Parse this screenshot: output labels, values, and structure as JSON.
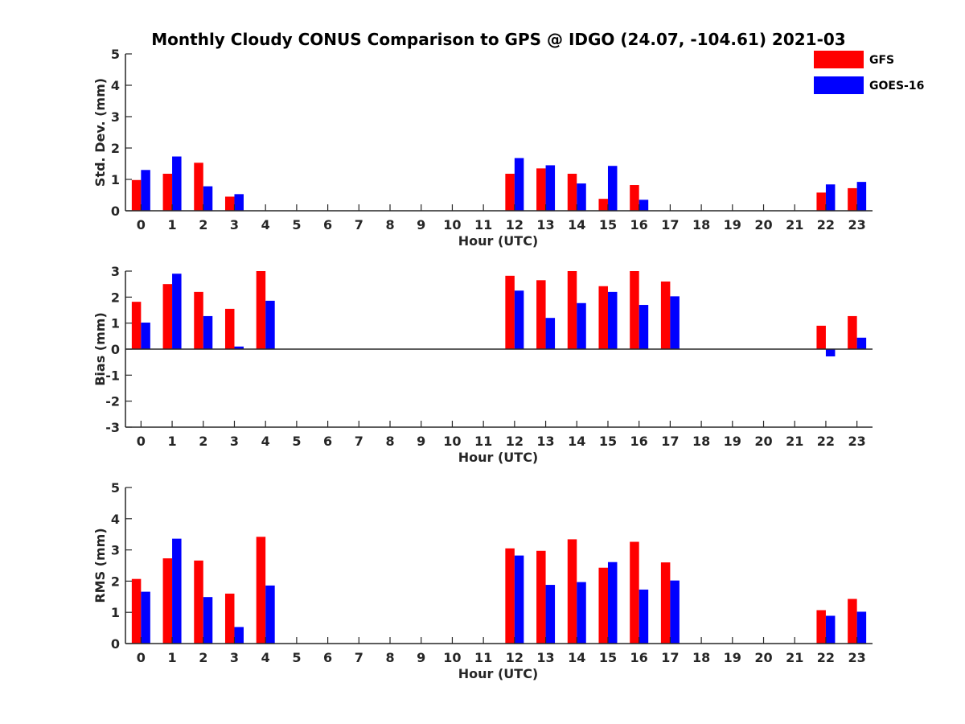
{
  "figure": {
    "title": "Monthly Cloudy CONUS Comparison to GPS @ IDGO (24.07, -104.61) 2021-03"
  },
  "legend": {
    "placement": "top-right",
    "entries": [
      {
        "name": "GFS",
        "color": "#ff0000"
      },
      {
        "name": "GOES-16",
        "color": "#0000ff"
      }
    ]
  },
  "chart_data": [
    {
      "type": "bar",
      "title": "Monthly Cloudy CONUS Comparison to GPS @ IDGO (24.07, -104.61) 2021-03",
      "xlabel": "Hour (UTC)",
      "ylabel": "Std. Dev. (mm)",
      "ylim": [
        0,
        5
      ],
      "yticks": [
        0,
        1,
        2,
        3,
        4,
        5
      ],
      "categories": [
        "0",
        "1",
        "2",
        "3",
        "4",
        "5",
        "6",
        "7",
        "8",
        "9",
        "10",
        "11",
        "12",
        "13",
        "14",
        "15",
        "16",
        "17",
        "18",
        "19",
        "20",
        "21",
        "22",
        "23"
      ],
      "series": [
        {
          "name": "GFS",
          "color": "#ff0000",
          "values": [
            0.98,
            1.18,
            1.53,
            0.45,
            null,
            null,
            null,
            null,
            null,
            null,
            null,
            null,
            1.18,
            1.35,
            1.18,
            0.38,
            0.82,
            null,
            null,
            null,
            null,
            null,
            0.58,
            0.72
          ]
        },
        {
          "name": "GOES-16",
          "color": "#0000ff",
          "values": [
            1.3,
            1.73,
            0.78,
            0.53,
            null,
            null,
            null,
            null,
            null,
            null,
            null,
            null,
            1.68,
            1.45,
            0.87,
            1.43,
            0.35,
            null,
            null,
            null,
            null,
            null,
            0.84,
            0.92
          ]
        }
      ]
    },
    {
      "type": "bar",
      "xlabel": "Hour (UTC)",
      "ylabel": "Bias (mm)",
      "ylim": [
        -3,
        3
      ],
      "yticks": [
        -3,
        -2,
        -1,
        0,
        1,
        2,
        3
      ],
      "categories": [
        "0",
        "1",
        "2",
        "3",
        "4",
        "5",
        "6",
        "7",
        "8",
        "9",
        "10",
        "11",
        "12",
        "13",
        "14",
        "15",
        "16",
        "17",
        "18",
        "19",
        "20",
        "21",
        "22",
        "23"
      ],
      "series": [
        {
          "name": "GFS",
          "color": "#ff0000",
          "values": [
            1.82,
            2.5,
            2.2,
            1.55,
            3.0,
            null,
            null,
            null,
            null,
            null,
            null,
            null,
            2.82,
            2.65,
            3.0,
            2.42,
            3.0,
            2.6,
            null,
            null,
            null,
            null,
            0.9,
            1.27
          ]
        },
        {
          "name": "GOES-16",
          "color": "#0000ff",
          "values": [
            1.02,
            2.9,
            1.27,
            0.1,
            1.86,
            null,
            null,
            null,
            null,
            null,
            null,
            null,
            2.25,
            1.2,
            1.77,
            2.2,
            1.7,
            2.03,
            null,
            null,
            null,
            null,
            -0.28,
            0.44
          ]
        }
      ]
    },
    {
      "type": "bar",
      "xlabel": "Hour (UTC)",
      "ylabel": "RMS (mm)",
      "ylim": [
        0,
        5
      ],
      "yticks": [
        0,
        1,
        2,
        3,
        4,
        5
      ],
      "categories": [
        "0",
        "1",
        "2",
        "3",
        "4",
        "5",
        "6",
        "7",
        "8",
        "9",
        "10",
        "11",
        "12",
        "13",
        "14",
        "15",
        "16",
        "17",
        "18",
        "19",
        "20",
        "21",
        "22",
        "23"
      ],
      "series": [
        {
          "name": "GFS",
          "color": "#ff0000",
          "values": [
            2.07,
            2.73,
            2.66,
            1.6,
            3.42,
            null,
            null,
            null,
            null,
            null,
            null,
            null,
            3.05,
            2.97,
            3.34,
            2.43,
            3.26,
            2.6,
            null,
            null,
            null,
            null,
            1.07,
            1.43
          ]
        },
        {
          "name": "GOES-16",
          "color": "#0000ff",
          "values": [
            1.66,
            3.36,
            1.49,
            0.53,
            1.86,
            null,
            null,
            null,
            null,
            null,
            null,
            null,
            2.82,
            1.88,
            1.97,
            2.61,
            1.73,
            2.02,
            null,
            null,
            null,
            null,
            0.89,
            1.02
          ]
        }
      ]
    }
  ]
}
